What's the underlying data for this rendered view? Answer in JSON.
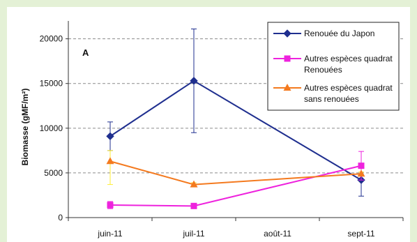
{
  "chart_data": {
    "type": "line",
    "panel_label": "A",
    "ylabel": "Biomasse (gMF/m²)",
    "xlabel": "",
    "categories": [
      "juin-11",
      "juil-11",
      "août-11",
      "sept-11"
    ],
    "ylim": [
      0,
      22000
    ],
    "yticks": [
      0,
      5000,
      10000,
      15000,
      20000
    ],
    "ytick_labels": [
      "0",
      "5000",
      "10000",
      "15000",
      "20000"
    ],
    "grid": "horizontal dashed",
    "legend_position": "top-right",
    "series": [
      {
        "name": "Renouée du Japon",
        "legend_lines": [
          "Renouée du Japon"
        ],
        "color": "#1f2f8f",
        "marker": "diamond",
        "points": [
          {
            "x": "juin-11",
            "y": 9100,
            "err_low": 7500,
            "err_high": 10700
          },
          {
            "x": "juil-11",
            "y": 15300,
            "err_low": 9500,
            "err_high": 21100
          },
          {
            "x": "sept-11",
            "y": 4200,
            "err_low": 2400,
            "err_high": 4800
          }
        ]
      },
      {
        "name": "Autres espèces quadrat Renouées",
        "legend_lines": [
          "Autres espèces quadrat",
          "Renouées"
        ],
        "color": "#ee22dd",
        "marker": "square",
        "points": [
          {
            "x": "juin-11",
            "y": 1400,
            "err_low": 1000,
            "err_high": 1800
          },
          {
            "x": "juil-11",
            "y": 1300,
            "err_low": 1100,
            "err_high": 1500
          },
          {
            "x": "sept-11",
            "y": 5800,
            "err_low": 4200,
            "err_high": 7400
          }
        ]
      },
      {
        "name": "Autres espèces quadrat sans renouées",
        "legend_lines": [
          "Autres espèces quadrat",
          "sans renouées"
        ],
        "color": "#f47a1f",
        "error_color": "#ffee33",
        "marker": "triangle",
        "points": [
          {
            "x": "juin-11",
            "y": 6300,
            "err_low": 3700,
            "err_high": 7500
          },
          {
            "x": "juil-11",
            "y": 3700,
            "err_low": 3500,
            "err_high": 3900
          },
          {
            "x": "sept-11",
            "y": 4900,
            "err_low": 4700,
            "err_high": 5100
          }
        ]
      }
    ]
  }
}
